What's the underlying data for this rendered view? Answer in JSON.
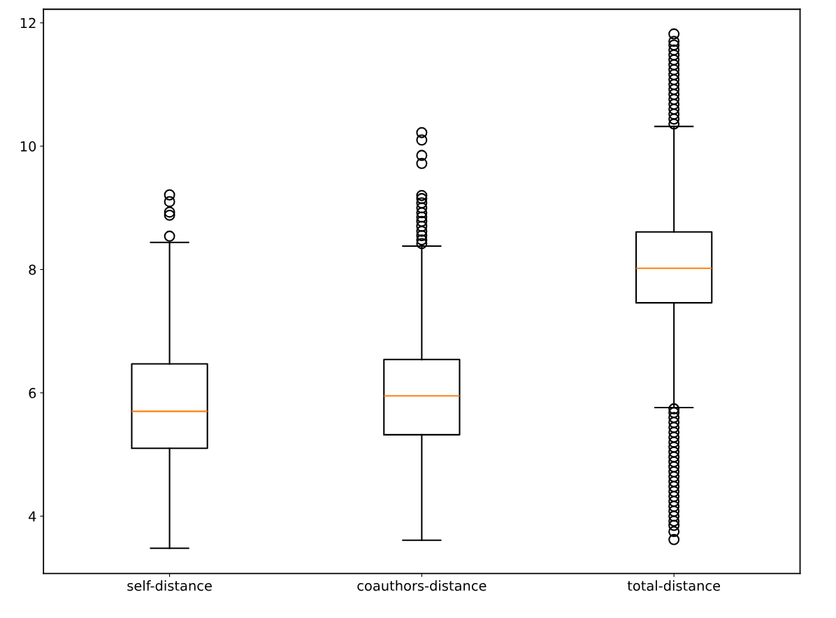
{
  "chart_data": {
    "type": "box",
    "categories": [
      "self-distance",
      "coauthors-distance",
      "total-distance"
    ],
    "boxes": [
      {
        "low": 3.48,
        "q1": 5.1,
        "median": 5.7,
        "q3": 6.47,
        "high": 8.44,
        "outliers": [
          8.54,
          8.88,
          8.93,
          9.1,
          9.21
        ]
      },
      {
        "low": 3.61,
        "q1": 5.32,
        "median": 5.95,
        "q3": 6.54,
        "high": 8.38,
        "outliers": [
          8.42,
          8.48,
          8.55,
          8.62,
          8.7,
          8.78,
          8.85,
          8.92,
          9.0,
          9.08,
          9.15,
          9.2,
          9.72,
          9.85,
          10.1,
          10.22
        ]
      },
      {
        "low": 5.76,
        "q1": 7.46,
        "median": 8.02,
        "q3": 8.61,
        "high": 10.32,
        "outliers": [
          3.62,
          3.75,
          3.85,
          3.92,
          4.0,
          4.08,
          4.16,
          4.24,
          4.32,
          4.4,
          4.48,
          4.56,
          4.64,
          4.72,
          4.8,
          4.88,
          4.96,
          5.04,
          5.12,
          5.2,
          5.28,
          5.36,
          5.44,
          5.52,
          5.6,
          5.68,
          5.74,
          10.36,
          10.44,
          10.52,
          10.6,
          10.68,
          10.76,
          10.84,
          10.92,
          11.0,
          11.08,
          11.16,
          11.24,
          11.32,
          11.4,
          11.48,
          11.56,
          11.64,
          11.7,
          11.82
        ]
      }
    ],
    "color": "#000000",
    "ylim": [
      3.07,
      12.22
    ],
    "yticks": [
      4,
      6,
      8,
      10,
      12
    ],
    "grid": false
  }
}
